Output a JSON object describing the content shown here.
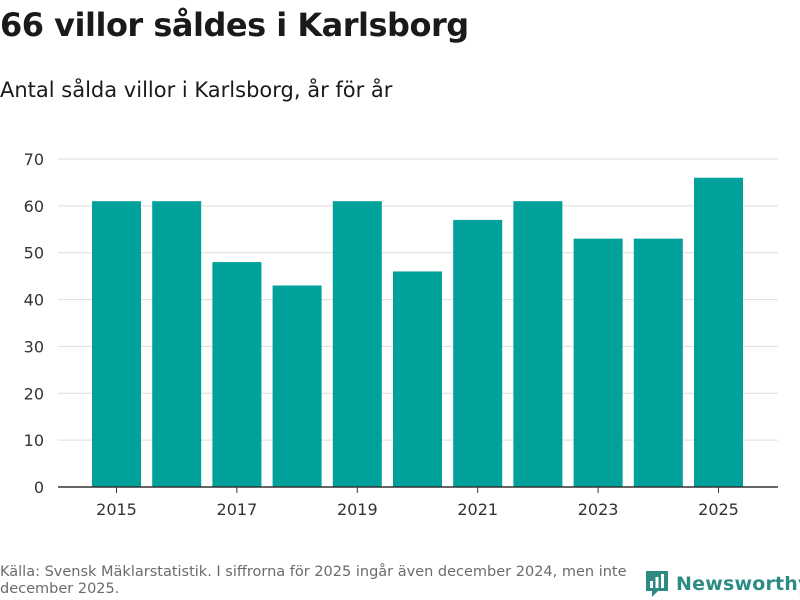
{
  "header": {
    "title": "66 villor såldes i Karlsborg",
    "subtitle": "Antal sålda villor i Karlsborg, år för år"
  },
  "footer": {
    "source": "Källa: Svensk Mäklarstatistik. I siffrorna för 2025 ingår även december 2024, men inte december 2025.",
    "brand": "Newsworthy",
    "brand_icon": "newsworthy-logo-icon"
  },
  "colors": {
    "bar": "#00a19a",
    "grid": "#dddddd",
    "axis": "#333333",
    "brand": "#2e8b83"
  },
  "chart_data": {
    "type": "bar",
    "title": "66 villor såldes i Karlsborg",
    "subtitle": "Antal sålda villor i Karlsborg, år för år",
    "xlabel": "",
    "ylabel": "",
    "categories": [
      "2015",
      "2016",
      "2017",
      "2018",
      "2019",
      "2020",
      "2021",
      "2022",
      "2023",
      "2024",
      "2025"
    ],
    "values": [
      61,
      61,
      48,
      43,
      61,
      46,
      57,
      61,
      53,
      53,
      66
    ],
    "x_tick_labels": [
      "2015",
      "2017",
      "2019",
      "2021",
      "2023",
      "2025"
    ],
    "y_ticks": [
      0,
      10,
      20,
      30,
      40,
      50,
      60,
      70
    ],
    "ylim": [
      0,
      70
    ],
    "grid": true,
    "legend": "none"
  }
}
